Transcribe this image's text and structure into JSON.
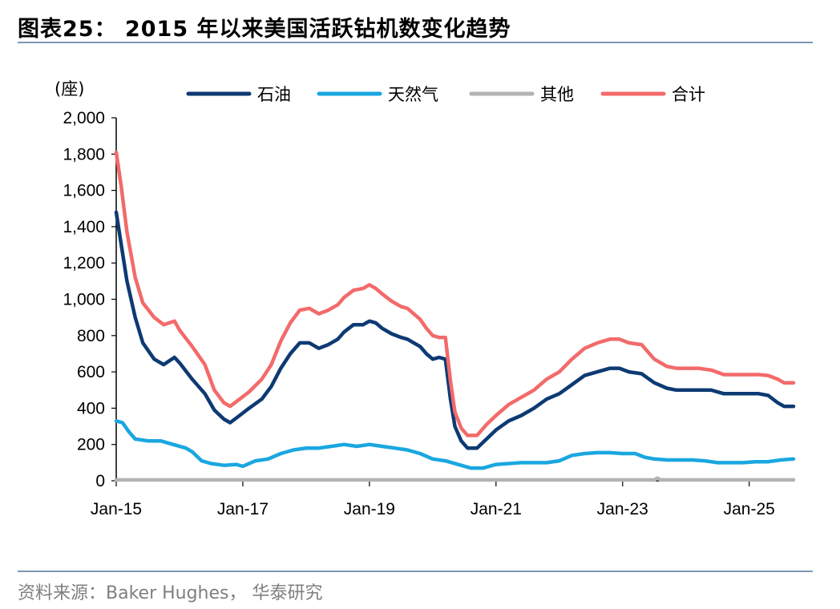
{
  "figure": {
    "title": "图表25：  2015 年以来美国活跃钻机数变化趋势",
    "source": "资料来源：Baker Hughes， 华泰研究"
  },
  "chart_data": {
    "type": "line",
    "title": "2015 年以来美国活跃钻机数变化趋势",
    "ylabel": "(座)",
    "xlabel": "",
    "ylim": [
      0,
      2000
    ],
    "y_ticks": [
      0,
      200,
      400,
      600,
      800,
      1000,
      1200,
      1400,
      1600,
      1800,
      2000
    ],
    "y_tick_labels": [
      "0",
      "200",
      "400",
      "600",
      "800",
      "1,000",
      "1,200",
      "1,400",
      "1,600",
      "1,800",
      "2,000"
    ],
    "x_range": [
      2015.0,
      2025.7
    ],
    "x_ticks": [
      2015,
      2017,
      2019,
      2021,
      2023,
      2025
    ],
    "x_tick_labels": [
      "Jan-15",
      "Jan-17",
      "Jan-19",
      "Jan-21",
      "Jan-23",
      "Jan-25"
    ],
    "grid": false,
    "legend_position": "top",
    "series": [
      {
        "name": "石油",
        "color": "#0d3a73",
        "points": [
          [
            2015.0,
            1480
          ],
          [
            2015.08,
            1300
          ],
          [
            2015.17,
            1100
          ],
          [
            2015.3,
            900
          ],
          [
            2015.42,
            760
          ],
          [
            2015.6,
            670
          ],
          [
            2015.75,
            640
          ],
          [
            2015.92,
            680
          ],
          [
            2016.0,
            650
          ],
          [
            2016.2,
            560
          ],
          [
            2016.4,
            480
          ],
          [
            2016.55,
            390
          ],
          [
            2016.7,
            340
          ],
          [
            2016.8,
            320
          ],
          [
            2016.95,
            360
          ],
          [
            2017.1,
            400
          ],
          [
            2017.3,
            450
          ],
          [
            2017.45,
            520
          ],
          [
            2017.6,
            620
          ],
          [
            2017.75,
            700
          ],
          [
            2017.9,
            760
          ],
          [
            2018.05,
            760
          ],
          [
            2018.2,
            730
          ],
          [
            2018.35,
            750
          ],
          [
            2018.5,
            780
          ],
          [
            2018.6,
            820
          ],
          [
            2018.75,
            860
          ],
          [
            2018.9,
            860
          ],
          [
            2019.0,
            880
          ],
          [
            2019.1,
            870
          ],
          [
            2019.2,
            840
          ],
          [
            2019.35,
            810
          ],
          [
            2019.5,
            790
          ],
          [
            2019.6,
            780
          ],
          [
            2019.8,
            740
          ],
          [
            2019.9,
            700
          ],
          [
            2020.0,
            670
          ],
          [
            2020.1,
            680
          ],
          [
            2020.2,
            670
          ],
          [
            2020.28,
            450
          ],
          [
            2020.35,
            300
          ],
          [
            2020.45,
            220
          ],
          [
            2020.55,
            180
          ],
          [
            2020.7,
            180
          ],
          [
            2020.85,
            230
          ],
          [
            2021.0,
            280
          ],
          [
            2021.2,
            330
          ],
          [
            2021.4,
            360
          ],
          [
            2021.6,
            400
          ],
          [
            2021.8,
            450
          ],
          [
            2022.0,
            480
          ],
          [
            2022.2,
            530
          ],
          [
            2022.4,
            580
          ],
          [
            2022.6,
            600
          ],
          [
            2022.8,
            620
          ],
          [
            2022.95,
            620
          ],
          [
            2023.1,
            600
          ],
          [
            2023.3,
            590
          ],
          [
            2023.5,
            540
          ],
          [
            2023.7,
            510
          ],
          [
            2023.85,
            500
          ],
          [
            2024.0,
            500
          ],
          [
            2024.2,
            500
          ],
          [
            2024.4,
            500
          ],
          [
            2024.6,
            480
          ],
          [
            2024.8,
            480
          ],
          [
            2025.0,
            480
          ],
          [
            2025.15,
            480
          ],
          [
            2025.3,
            470
          ],
          [
            2025.45,
            430
          ],
          [
            2025.55,
            410
          ],
          [
            2025.7,
            410
          ]
        ]
      },
      {
        "name": "天然气",
        "color": "#1aa7e0",
        "points": [
          [
            2015.0,
            330
          ],
          [
            2015.1,
            320
          ],
          [
            2015.2,
            270
          ],
          [
            2015.3,
            230
          ],
          [
            2015.5,
            220
          ],
          [
            2015.7,
            220
          ],
          [
            2015.9,
            200
          ],
          [
            2016.1,
            180
          ],
          [
            2016.2,
            160
          ],
          [
            2016.35,
            110
          ],
          [
            2016.5,
            95
          ],
          [
            2016.7,
            85
          ],
          [
            2016.9,
            90
          ],
          [
            2017.0,
            80
          ],
          [
            2017.2,
            110
          ],
          [
            2017.4,
            120
          ],
          [
            2017.6,
            150
          ],
          [
            2017.8,
            170
          ],
          [
            2018.0,
            180
          ],
          [
            2018.2,
            180
          ],
          [
            2018.4,
            190
          ],
          [
            2018.6,
            200
          ],
          [
            2018.8,
            190
          ],
          [
            2019.0,
            200
          ],
          [
            2019.2,
            190
          ],
          [
            2019.4,
            180
          ],
          [
            2019.6,
            170
          ],
          [
            2019.8,
            150
          ],
          [
            2020.0,
            120
          ],
          [
            2020.2,
            110
          ],
          [
            2020.4,
            90
          ],
          [
            2020.6,
            70
          ],
          [
            2020.8,
            70
          ],
          [
            2021.0,
            90
          ],
          [
            2021.2,
            95
          ],
          [
            2021.4,
            100
          ],
          [
            2021.6,
            100
          ],
          [
            2021.8,
            100
          ],
          [
            2022.0,
            110
          ],
          [
            2022.2,
            140
          ],
          [
            2022.4,
            150
          ],
          [
            2022.6,
            155
          ],
          [
            2022.8,
            155
          ],
          [
            2023.0,
            150
          ],
          [
            2023.2,
            150
          ],
          [
            2023.35,
            130
          ],
          [
            2023.5,
            120
          ],
          [
            2023.7,
            115
          ],
          [
            2023.9,
            115
          ],
          [
            2024.1,
            115
          ],
          [
            2024.3,
            110
          ],
          [
            2024.5,
            100
          ],
          [
            2024.7,
            100
          ],
          [
            2024.9,
            100
          ],
          [
            2025.1,
            105
          ],
          [
            2025.3,
            105
          ],
          [
            2025.5,
            115
          ],
          [
            2025.7,
            120
          ]
        ]
      },
      {
        "name": "其他",
        "color": "#b3b3b3",
        "points": [
          [
            2015.0,
            5
          ],
          [
            2016.0,
            5
          ],
          [
            2017.0,
            5
          ],
          [
            2018.0,
            5
          ],
          [
            2019.0,
            5
          ],
          [
            2020.0,
            5
          ],
          [
            2021.0,
            5
          ],
          [
            2022.0,
            5
          ],
          [
            2023.0,
            5
          ],
          [
            2023.5,
            5
          ],
          [
            2023.55,
            15
          ],
          [
            2023.6,
            5
          ],
          [
            2024.0,
            5
          ],
          [
            2025.0,
            5
          ],
          [
            2025.7,
            5
          ]
        ]
      },
      {
        "name": "合计",
        "color": "#f36a6a",
        "points": [
          [
            2015.0,
            1810
          ],
          [
            2015.08,
            1620
          ],
          [
            2015.17,
            1370
          ],
          [
            2015.3,
            1120
          ],
          [
            2015.42,
            980
          ],
          [
            2015.6,
            900
          ],
          [
            2015.75,
            860
          ],
          [
            2015.92,
            880
          ],
          [
            2016.0,
            830
          ],
          [
            2016.2,
            740
          ],
          [
            2016.4,
            640
          ],
          [
            2016.55,
            500
          ],
          [
            2016.7,
            430
          ],
          [
            2016.8,
            410
          ],
          [
            2016.95,
            450
          ],
          [
            2017.1,
            490
          ],
          [
            2017.3,
            560
          ],
          [
            2017.45,
            640
          ],
          [
            2017.6,
            770
          ],
          [
            2017.75,
            870
          ],
          [
            2017.9,
            940
          ],
          [
            2018.05,
            950
          ],
          [
            2018.2,
            920
          ],
          [
            2018.35,
            940
          ],
          [
            2018.5,
            970
          ],
          [
            2018.6,
            1010
          ],
          [
            2018.75,
            1050
          ],
          [
            2018.9,
            1060
          ],
          [
            2019.0,
            1080
          ],
          [
            2019.1,
            1060
          ],
          [
            2019.2,
            1030
          ],
          [
            2019.35,
            990
          ],
          [
            2019.5,
            960
          ],
          [
            2019.6,
            950
          ],
          [
            2019.8,
            890
          ],
          [
            2019.9,
            840
          ],
          [
            2020.0,
            800
          ],
          [
            2020.1,
            790
          ],
          [
            2020.2,
            790
          ],
          [
            2020.28,
            550
          ],
          [
            2020.35,
            380
          ],
          [
            2020.45,
            290
          ],
          [
            2020.55,
            250
          ],
          [
            2020.7,
            250
          ],
          [
            2020.85,
            310
          ],
          [
            2021.0,
            360
          ],
          [
            2021.2,
            420
          ],
          [
            2021.4,
            460
          ],
          [
            2021.6,
            500
          ],
          [
            2021.8,
            560
          ],
          [
            2022.0,
            600
          ],
          [
            2022.2,
            670
          ],
          [
            2022.4,
            730
          ],
          [
            2022.6,
            760
          ],
          [
            2022.8,
            780
          ],
          [
            2022.95,
            780
          ],
          [
            2023.1,
            760
          ],
          [
            2023.3,
            750
          ],
          [
            2023.5,
            670
          ],
          [
            2023.7,
            630
          ],
          [
            2023.85,
            620
          ],
          [
            2024.0,
            620
          ],
          [
            2024.2,
            620
          ],
          [
            2024.4,
            610
          ],
          [
            2024.6,
            585
          ],
          [
            2024.8,
            585
          ],
          [
            2025.0,
            585
          ],
          [
            2025.15,
            585
          ],
          [
            2025.3,
            580
          ],
          [
            2025.45,
            560
          ],
          [
            2025.55,
            540
          ],
          [
            2025.7,
            540
          ]
        ]
      }
    ]
  }
}
